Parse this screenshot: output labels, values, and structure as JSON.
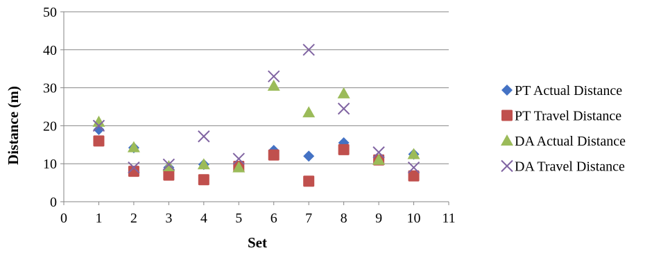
{
  "chart_data": {
    "type": "scatter",
    "title": "",
    "xlabel": "Set",
    "ylabel": "Distance (m)",
    "xlim": [
      0,
      11
    ],
    "ylim": [
      0,
      50
    ],
    "xticks": [
      "0",
      "1",
      "2",
      "3",
      "4",
      "5",
      "6",
      "7",
      "8",
      "9",
      "10",
      "11"
    ],
    "yticks": [
      "0",
      "10",
      "20",
      "30",
      "40",
      "50"
    ],
    "grid": "horizontal",
    "legend_position": "right",
    "x": [
      1,
      2,
      3,
      4,
      5,
      6,
      7,
      8,
      9,
      10
    ],
    "series": [
      {
        "name": "PT Actual Distance",
        "marker": "diamond",
        "color": "#4472c4",
        "values": [
          19,
          14.2,
          9,
          9.8,
          9.3,
          13.5,
          12,
          15.5,
          11,
          12.5
        ]
      },
      {
        "name": "PT Travel Distance",
        "marker": "square",
        "color": "#c0504d",
        "values": [
          16,
          8,
          7,
          5.8,
          9.3,
          12.3,
          5.4,
          13.7,
          11,
          6.8
        ]
      },
      {
        "name": "DA Actual Distance",
        "marker": "triangle",
        "color": "#9bbb59",
        "values": [
          21,
          14.3,
          9.3,
          9.8,
          9,
          30.5,
          23.5,
          28.5,
          11,
          12.5
        ]
      },
      {
        "name": "DA Travel Distance",
        "marker": "x",
        "color": "#8064a2",
        "values": [
          20,
          9,
          9.8,
          17.2,
          11.3,
          33,
          40,
          24.5,
          13,
          9
        ]
      }
    ]
  }
}
